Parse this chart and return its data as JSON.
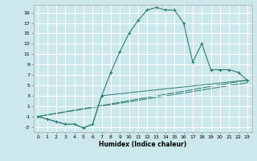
{
  "xlabel": "Humidex (Indice chaleur)",
  "background_color": "#cce8ec",
  "grid_color": "#ffffff",
  "line_color": "#2e7d74",
  "xlim": [
    -0.5,
    23.5
  ],
  "ylim": [
    -4,
    20.5
  ],
  "xticks": [
    0,
    1,
    2,
    3,
    4,
    5,
    6,
    7,
    8,
    9,
    10,
    11,
    12,
    13,
    14,
    15,
    16,
    17,
    18,
    19,
    20,
    21,
    22,
    23
  ],
  "yticks": [
    -3,
    -1,
    1,
    3,
    5,
    7,
    9,
    11,
    13,
    15,
    17,
    19
  ],
  "series_main": {
    "x": [
      0,
      1,
      2,
      3,
      4,
      5,
      6,
      7,
      8,
      9,
      10,
      11,
      12,
      13,
      14,
      15,
      16,
      17,
      18,
      19,
      20,
      21,
      22,
      23
    ],
    "y": [
      -1,
      -1.5,
      -2,
      -2.5,
      -2.5,
      -3.2,
      -2.5,
      3.0,
      7.5,
      11.5,
      15.0,
      17.5,
      19.5,
      20.0,
      19.5,
      19.5,
      17.0,
      9.5,
      13.0,
      8.0,
      8.0,
      8.0,
      7.5,
      6.0
    ]
  },
  "series_line1": {
    "x": [
      0,
      1,
      2,
      3,
      4,
      5,
      6,
      7,
      23
    ],
    "y": [
      -1,
      -1.5,
      -2,
      -2.5,
      -2.5,
      -3.2,
      -2.5,
      3.0,
      6.0
    ]
  },
  "series_line2": {
    "x": [
      0,
      23
    ],
    "y": [
      -1,
      6.0
    ]
  },
  "series_line3": {
    "x": [
      0,
      23
    ],
    "y": [
      -1,
      5.5
    ]
  }
}
